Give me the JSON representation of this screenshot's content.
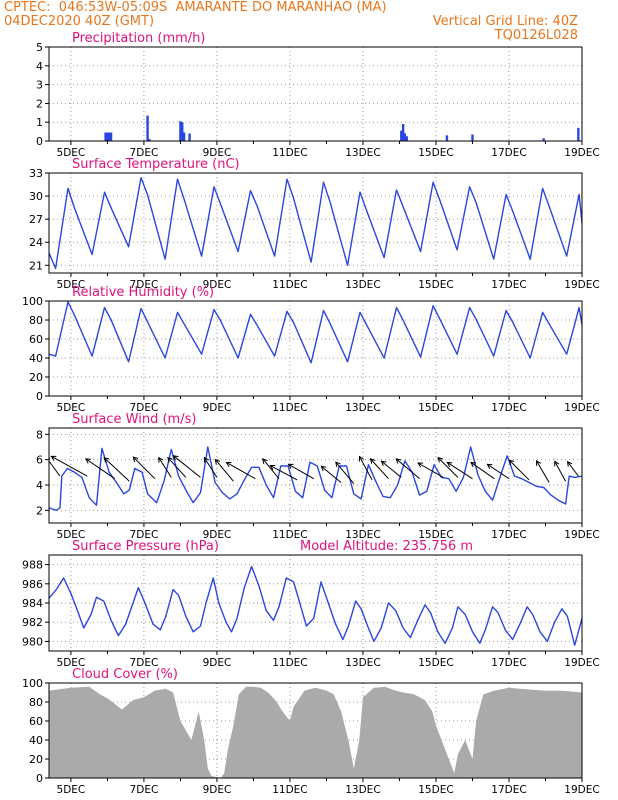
{
  "header": {
    "line1_left": "CPTEC:  046:53W-05:09S  AMARANTE DO MARANHAO (MA)",
    "line2_left": "04DEC2020 40Z (GMT)",
    "line2_right": "Vertical Grid Line: 40Z",
    "line3_right": "TQ0126L028"
  },
  "colors": {
    "header": "#e8761c",
    "title": "#e0117e",
    "series": "#2a46e0",
    "cloud": "#aaaaaa",
    "axis": "#000000",
    "grid": "#999999"
  },
  "x_ticks": [
    "5DEC",
    "7DEC",
    "9DEC",
    "11DEC",
    "13DEC",
    "15DEC",
    "17DEC",
    "19DEC"
  ],
  "x_range_days": [
    4.4,
    19.0
  ],
  "chart_data": [
    {
      "id": "precip",
      "type": "bar",
      "title": "Precipitation (mm/h)",
      "ylim": [
        0,
        5
      ],
      "yticks": [
        0,
        1,
        2,
        3,
        4,
        5
      ],
      "points": [
        [
          5.95,
          0.45
        ],
        [
          6.0,
          0.45
        ],
        [
          6.05,
          0.45
        ],
        [
          6.1,
          0.45
        ],
        [
          7.1,
          1.35
        ],
        [
          7.15,
          0.1
        ],
        [
          8.0,
          1.05
        ],
        [
          8.05,
          1.0
        ],
        [
          8.1,
          0.45
        ],
        [
          8.25,
          0.4
        ],
        [
          14.05,
          0.55
        ],
        [
          14.1,
          0.9
        ],
        [
          14.15,
          0.4
        ],
        [
          14.2,
          0.25
        ],
        [
          15.3,
          0.3
        ],
        [
          16.0,
          0.35
        ],
        [
          17.95,
          0.15
        ],
        [
          18.9,
          0.7
        ]
      ]
    },
    {
      "id": "temp",
      "type": "line",
      "title": "Surface Temperature (nC)",
      "ylim": [
        20,
        33
      ],
      "yticks": [
        21,
        24,
        27,
        30,
        33
      ],
      "peaks": [
        31.0,
        30.5,
        32.4,
        32.2,
        31.2,
        30.7,
        32.2,
        31.8,
        30.5,
        30.8,
        31.8,
        31.2,
        30.2,
        31.0,
        30.2
      ],
      "troughs": [
        20.6,
        22.4,
        23.4,
        21.8,
        22.2,
        22.8,
        22.2,
        21.4,
        21.0,
        22.0,
        22.8,
        23.0,
        21.8,
        21.8,
        22.2
      ],
      "end_value": 26.5
    },
    {
      "id": "rh",
      "type": "line",
      "title": "Relative Humidity (%)",
      "ylim": [
        0,
        100
      ],
      "yticks": [
        0,
        20,
        40,
        60,
        80,
        100
      ],
      "peaks": [
        99,
        93,
        92,
        88,
        91,
        86,
        89,
        90,
        88,
        93,
        95,
        93,
        90,
        88,
        93
      ],
      "troughs": [
        42,
        42,
        36,
        40,
        44,
        40,
        42,
        35,
        36,
        40,
        41,
        44,
        42,
        40,
        44
      ],
      "end_value": 75
    },
    {
      "id": "wind",
      "type": "line",
      "title": "Surface Wind (m/s)",
      "ylim": [
        1,
        8.5
      ],
      "yticks": [
        2,
        4,
        6,
        8
      ],
      "points": [
        [
          4.4,
          2.2
        ],
        [
          4.5,
          2.1
        ],
        [
          4.6,
          2.0
        ],
        [
          4.7,
          2.2
        ],
        [
          4.75,
          4.7
        ],
        [
          4.9,
          5.3
        ],
        [
          5.1,
          5.0
        ],
        [
          5.3,
          4.6
        ],
        [
          5.5,
          3.0
        ],
        [
          5.7,
          2.4
        ],
        [
          5.85,
          6.9
        ],
        [
          6.05,
          5.0
        ],
        [
          6.25,
          4.2
        ],
        [
          6.45,
          3.3
        ],
        [
          6.6,
          3.6
        ],
        [
          6.75,
          5.3
        ],
        [
          6.95,
          5.0
        ],
        [
          7.1,
          3.3
        ],
        [
          7.35,
          2.6
        ],
        [
          7.55,
          4.3
        ],
        [
          7.75,
          6.8
        ],
        [
          7.95,
          4.7
        ],
        [
          8.15,
          3.6
        ],
        [
          8.35,
          2.6
        ],
        [
          8.55,
          3.4
        ],
        [
          8.75,
          7.0
        ],
        [
          8.95,
          4.2
        ],
        [
          9.15,
          3.4
        ],
        [
          9.35,
          2.9
        ],
        [
          9.55,
          3.3
        ],
        [
          9.75,
          4.4
        ],
        [
          9.95,
          5.4
        ],
        [
          10.15,
          5.4
        ],
        [
          10.35,
          4.0
        ],
        [
          10.55,
          3.0
        ],
        [
          10.75,
          5.5
        ],
        [
          10.95,
          5.5
        ],
        [
          11.15,
          3.5
        ],
        [
          11.35,
          3.0
        ],
        [
          11.55,
          5.8
        ],
        [
          11.75,
          5.5
        ],
        [
          11.95,
          3.6
        ],
        [
          12.15,
          3.0
        ],
        [
          12.35,
          5.5
        ],
        [
          12.55,
          5.5
        ],
        [
          12.75,
          3.3
        ],
        [
          12.95,
          2.9
        ],
        [
          13.15,
          5.6
        ],
        [
          13.35,
          4.3
        ],
        [
          13.55,
          3.1
        ],
        [
          13.75,
          3.0
        ],
        [
          13.95,
          4.0
        ],
        [
          14.15,
          5.9
        ],
        [
          14.35,
          5.0
        ],
        [
          14.55,
          3.2
        ],
        [
          14.75,
          3.5
        ],
        [
          14.95,
          5.6
        ],
        [
          15.15,
          4.6
        ],
        [
          15.35,
          4.5
        ],
        [
          15.55,
          3.5
        ],
        [
          15.75,
          4.6
        ],
        [
          15.95,
          7.0
        ],
        [
          16.15,
          4.8
        ],
        [
          16.35,
          3.5
        ],
        [
          16.55,
          2.8
        ],
        [
          16.75,
          4.6
        ],
        [
          16.95,
          6.3
        ],
        [
          17.15,
          4.7
        ],
        [
          17.35,
          4.5
        ],
        [
          17.55,
          4.2
        ],
        [
          17.75,
          3.9
        ],
        [
          17.95,
          3.8
        ],
        [
          18.15,
          3.2
        ],
        [
          18.35,
          2.8
        ],
        [
          18.55,
          2.5
        ],
        [
          18.65,
          4.7
        ],
        [
          18.8,
          4.6
        ],
        [
          19.0,
          4.7
        ]
      ],
      "arrows": [
        [
          4.7,
          4.7,
          -0.4,
          -0.55
        ],
        [
          5.45,
          4.7,
          -1.0,
          -0.55
        ],
        [
          6.2,
          4.5,
          -0.8,
          -0.55
        ],
        [
          6.6,
          4.3,
          -0.7,
          -0.65
        ],
        [
          7.3,
          4.5,
          -0.6,
          -0.6
        ],
        [
          7.75,
          4.6,
          -0.35,
          -0.55
        ],
        [
          8.15,
          4.6,
          -0.5,
          -0.55
        ],
        [
          8.55,
          4.6,
          -0.75,
          -0.6
        ],
        [
          9.0,
          4.6,
          -0.35,
          -0.55
        ],
        [
          9.45,
          4.3,
          -0.5,
          -0.6
        ],
        [
          10.05,
          4.5,
          -0.8,
          -0.45
        ],
        [
          10.7,
          4.5,
          -0.45,
          -0.55
        ],
        [
          11.2,
          4.4,
          -0.75,
          -0.4
        ],
        [
          11.65,
          4.5,
          -0.7,
          -0.4
        ],
        [
          12.4,
          4.2,
          -0.55,
          -0.45
        ],
        [
          12.75,
          4.1,
          -0.5,
          -0.6
        ],
        [
          13.25,
          4.4,
          -0.35,
          -0.65
        ],
        [
          13.7,
          4.5,
          -0.5,
          -0.55
        ],
        [
          14.05,
          4.6,
          -0.55,
          -0.45
        ],
        [
          14.55,
          4.5,
          -0.65,
          -0.55
        ],
        [
          15.2,
          4.6,
          -0.7,
          -0.4
        ],
        [
          15.6,
          4.6,
          -0.55,
          -0.55
        ],
        [
          16.0,
          4.5,
          -0.7,
          -0.45
        ],
        [
          16.6,
          4.5,
          -0.65,
          -0.45
        ],
        [
          17.0,
          4.5,
          -0.6,
          -0.4
        ],
        [
          17.55,
          4.4,
          -0.55,
          -0.55
        ],
        [
          18.1,
          4.2,
          -0.35,
          -0.6
        ],
        [
          18.55,
          4.3,
          -0.3,
          -0.55
        ],
        [
          18.9,
          4.7,
          -0.3,
          -0.4
        ]
      ]
    },
    {
      "id": "pres",
      "type": "line",
      "title": "Surface Pressure (hPa)",
      "subtitle": "Model Altitude: 235.756 m",
      "ylim": [
        979.0,
        989.0
      ],
      "yticks": [
        980,
        982,
        984,
        986,
        988
      ],
      "points": [
        [
          4.4,
          984.5
        ],
        [
          4.6,
          985.4
        ],
        [
          4.8,
          986.6
        ],
        [
          5.0,
          985.0
        ],
        [
          5.2,
          983.0
        ],
        [
          5.35,
          981.4
        ],
        [
          5.55,
          982.8
        ],
        [
          5.7,
          984.6
        ],
        [
          5.9,
          984.2
        ],
        [
          6.1,
          982.2
        ],
        [
          6.3,
          980.6
        ],
        [
          6.5,
          981.8
        ],
        [
          6.7,
          984.0
        ],
        [
          6.85,
          985.6
        ],
        [
          7.05,
          983.8
        ],
        [
          7.25,
          981.8
        ],
        [
          7.45,
          981.2
        ],
        [
          7.6,
          982.6
        ],
        [
          7.8,
          985.4
        ],
        [
          7.95,
          984.8
        ],
        [
          8.15,
          982.6
        ],
        [
          8.35,
          981.0
        ],
        [
          8.55,
          981.6
        ],
        [
          8.7,
          984.0
        ],
        [
          8.9,
          986.6
        ],
        [
          9.05,
          984.0
        ],
        [
          9.25,
          982.0
        ],
        [
          9.4,
          981.0
        ],
        [
          9.55,
          982.4
        ],
        [
          9.75,
          985.6
        ],
        [
          9.95,
          987.8
        ],
        [
          10.15,
          985.8
        ],
        [
          10.35,
          983.2
        ],
        [
          10.55,
          982.2
        ],
        [
          10.7,
          983.6
        ],
        [
          10.9,
          986.6
        ],
        [
          11.1,
          986.2
        ],
        [
          11.3,
          983.6
        ],
        [
          11.45,
          981.6
        ],
        [
          11.65,
          982.4
        ],
        [
          11.85,
          986.2
        ],
        [
          12.05,
          984.0
        ],
        [
          12.25,
          981.8
        ],
        [
          12.45,
          980.2
        ],
        [
          12.6,
          981.6
        ],
        [
          12.8,
          984.2
        ],
        [
          12.95,
          983.4
        ],
        [
          13.15,
          981.4
        ],
        [
          13.3,
          980.0
        ],
        [
          13.5,
          981.4
        ],
        [
          13.7,
          984.0
        ],
        [
          13.9,
          983.2
        ],
        [
          14.1,
          981.4
        ],
        [
          14.3,
          980.4
        ],
        [
          14.5,
          982.2
        ],
        [
          14.7,
          983.8
        ],
        [
          14.85,
          983.0
        ],
        [
          15.05,
          981.0
        ],
        [
          15.25,
          979.8
        ],
        [
          15.45,
          981.4
        ],
        [
          15.6,
          983.6
        ],
        [
          15.8,
          982.8
        ],
        [
          16.0,
          981.0
        ],
        [
          16.2,
          979.8
        ],
        [
          16.35,
          981.2
        ],
        [
          16.55,
          983.6
        ],
        [
          16.7,
          983.0
        ],
        [
          16.9,
          981.2
        ],
        [
          17.1,
          980.2
        ],
        [
          17.3,
          981.8
        ],
        [
          17.5,
          983.6
        ],
        [
          17.65,
          982.8
        ],
        [
          17.85,
          981.0
        ],
        [
          18.05,
          980.0
        ],
        [
          18.25,
          982.0
        ],
        [
          18.45,
          983.4
        ],
        [
          18.6,
          982.6
        ],
        [
          18.8,
          979.6
        ],
        [
          19.0,
          982.4
        ]
      ]
    },
    {
      "id": "cloud",
      "type": "area",
      "title": "Cloud Cover (%)",
      "ylim": [
        0,
        100
      ],
      "yticks": [
        0,
        20,
        40,
        60,
        80,
        100
      ],
      "points": [
        [
          4.4,
          92
        ],
        [
          5.0,
          95
        ],
        [
          5.5,
          96
        ],
        [
          5.8,
          88
        ],
        [
          6.0,
          84
        ],
        [
          6.2,
          78
        ],
        [
          6.4,
          72
        ],
        [
          6.7,
          82
        ],
        [
          7.0,
          85
        ],
        [
          7.3,
          92
        ],
        [
          7.6,
          94
        ],
        [
          7.8,
          90
        ],
        [
          8.0,
          60
        ],
        [
          8.3,
          40
        ],
        [
          8.5,
          70
        ],
        [
          8.65,
          40
        ],
        [
          8.75,
          10
        ],
        [
          8.85,
          2
        ],
        [
          9.0,
          1
        ],
        [
          9.1,
          0
        ],
        [
          9.2,
          5
        ],
        [
          9.3,
          30
        ],
        [
          9.45,
          55
        ],
        [
          9.6,
          88
        ],
        [
          9.8,
          96
        ],
        [
          10.0,
          96
        ],
        [
          10.2,
          95
        ],
        [
          10.4,
          90
        ],
        [
          10.6,
          82
        ],
        [
          10.8,
          70
        ],
        [
          11.0,
          60
        ],
        [
          11.1,
          75
        ],
        [
          11.4,
          92
        ],
        [
          11.7,
          95
        ],
        [
          12.0,
          92
        ],
        [
          12.2,
          88
        ],
        [
          12.4,
          70
        ],
        [
          12.6,
          40
        ],
        [
          12.75,
          10
        ],
        [
          12.9,
          40
        ],
        [
          13.0,
          85
        ],
        [
          13.3,
          95
        ],
        [
          13.6,
          96
        ],
        [
          13.9,
          92
        ],
        [
          14.1,
          90
        ],
        [
          14.4,
          88
        ],
        [
          14.7,
          82
        ],
        [
          14.9,
          70
        ],
        [
          15.0,
          55
        ],
        [
          15.2,
          35
        ],
        [
          15.4,
          15
        ],
        [
          15.5,
          5
        ],
        [
          15.6,
          25
        ],
        [
          15.8,
          40
        ],
        [
          16.0,
          20
        ],
        [
          16.1,
          60
        ],
        [
          16.3,
          88
        ],
        [
          16.6,
          92
        ],
        [
          17.0,
          95
        ],
        [
          17.3,
          94
        ],
        [
          17.6,
          93
        ],
        [
          18.0,
          92
        ],
        [
          18.4,
          92
        ],
        [
          18.7,
          91
        ],
        [
          19.0,
          90
        ]
      ]
    }
  ]
}
